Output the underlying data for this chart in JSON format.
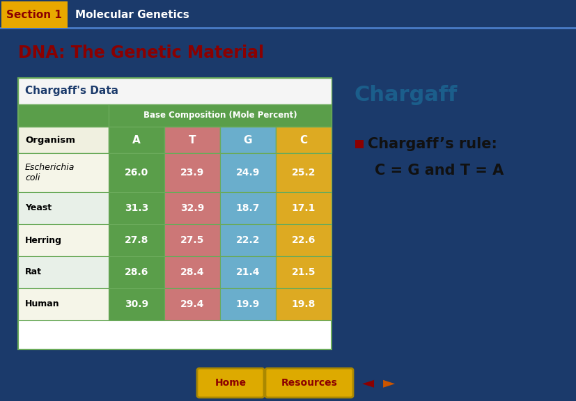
{
  "slide_bg": "#1b3a6b",
  "content_bg": "#ffffff",
  "header_bg": "#1b3a6b",
  "header_border_color": "#4a7cc7",
  "section_label": "Section 1",
  "section_label_bg": "#e8a800",
  "section_label_color": "#8b0000",
  "header_text": "Molecular Genetics",
  "header_text_color": "#ffffff",
  "title_text": "DNA: The Genetic Material",
  "title_color": "#8b0000",
  "table_title": "Chargaff's Data",
  "table_title_color": "#1b3a6b",
  "table_title_bg": "#f5f5f5",
  "table_border_color": "#6aaa5a",
  "col_header_bg": "#5a9e4a",
  "col_header_color": "#ffffff",
  "col_header_text": "Base Composition (Mole Percent)",
  "col_A_bg": "#5a9e4a",
  "col_T_bg": "#cc7777",
  "col_G_bg": "#6aaecc",
  "col_C_bg": "#ddaa22",
  "organism_col_bg_odd": "#f5f5e8",
  "organism_col_bg_even": "#e8f0e8",
  "row_border": "#6aaa5a",
  "organisms": [
    "Organism",
    "Escherichia\ncoli",
    "Yeast",
    "Herring",
    "Rat",
    "Human"
  ],
  "organism_italic": [
    false,
    true,
    false,
    false,
    false,
    false
  ],
  "col_labels": [
    "A",
    "T",
    "G",
    "C"
  ],
  "data": [
    [
      "",
      "",
      "",
      ""
    ],
    [
      "26.0",
      "23.9",
      "24.9",
      "25.2"
    ],
    [
      "31.3",
      "32.9",
      "18.7",
      "17.1"
    ],
    [
      "27.8",
      "27.5",
      "22.2",
      "22.6"
    ],
    [
      "28.6",
      "28.4",
      "21.4",
      "21.5"
    ],
    [
      "30.9",
      "29.4",
      "19.9",
      "19.8"
    ]
  ],
  "chargaff_title": "Chargaff",
  "chargaff_title_color": "#1b5e8b",
  "bullet_square_color": "#8b0000",
  "bullet_text1": "Chargaff’s rule:",
  "bullet_text2": "C = G and T = A",
  "bullet_text_color": "#111111",
  "home_btn_color": "#ddaa00",
  "home_btn_text": "Home",
  "home_btn_text_color": "#8b0000",
  "resources_btn_color": "#ddaa00",
  "resources_btn_text": "Resources",
  "resources_btn_text_color": "#8b0000",
  "arrow_left_color": "#8b0000",
  "arrow_right_color": "#cc5500"
}
